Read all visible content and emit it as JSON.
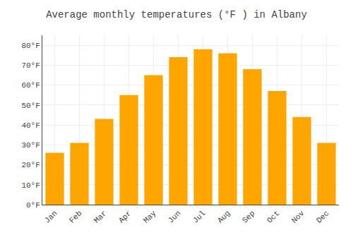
{
  "chart_data": {
    "type": "bar",
    "title": "Average monthly temperatures (°F ) in Albany",
    "categories": [
      "Jan",
      "Feb",
      "Mar",
      "Apr",
      "May",
      "Jun",
      "Jul",
      "Aug",
      "Sep",
      "Oct",
      "Nov",
      "Dec"
    ],
    "values": [
      26,
      31,
      43,
      55,
      65,
      74,
      78,
      76,
      68,
      57,
      44,
      31
    ],
    "color": "#FFA500",
    "ylim": [
      0,
      85
    ],
    "yticks": [
      {
        "value": 0,
        "label": "0°F"
      },
      {
        "value": 10,
        "label": "10°F"
      },
      {
        "value": 20,
        "label": "20°F"
      },
      {
        "value": 30,
        "label": "30°F"
      },
      {
        "value": 40,
        "label": "40°F"
      },
      {
        "value": 50,
        "label": "50°F"
      },
      {
        "value": 60,
        "label": "60°F"
      },
      {
        "value": 70,
        "label": "70°F"
      },
      {
        "value": 80,
        "label": "80°F"
      }
    ],
    "grid": true
  }
}
